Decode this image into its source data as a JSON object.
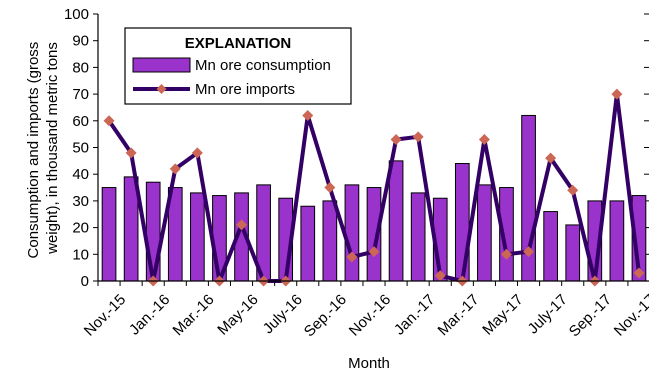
{
  "chart_data": {
    "type": "bar",
    "xlabel": "Month",
    "ylabel_lines": [
      "Consumption and imports (gross",
      "weight), in thousand metric tons"
    ],
    "ylim": [
      0,
      100
    ],
    "yticks": [
      0,
      10,
      20,
      30,
      40,
      50,
      60,
      70,
      80,
      90,
      100
    ],
    "grid": false,
    "legend": {
      "title": "EXPLANATION",
      "placement": "top-left"
    },
    "categories": [
      "Nov.-15",
      "Dec.-15",
      "Jan.-16",
      "Feb.-16",
      "Mar.-16",
      "Apr.-16",
      "May-16",
      "June-16",
      "July-16",
      "Aug.-16",
      "Sep.-16",
      "Oct.-16",
      "Nov.-16",
      "Dec.-16",
      "Jan.-17",
      "Feb.-17",
      "Mar.-17",
      "Apr.-17",
      "May-17",
      "June-17",
      "July-17",
      "Aug.-17",
      "Sep.-17",
      "Oct.-17",
      "Nov.-17"
    ],
    "tick_labels": [
      "Nov.-15",
      "Jan.-16",
      "Mar.-16",
      "May-16",
      "July-16",
      "Sep.-16",
      "Nov.-16",
      "Jan.-17",
      "Mar.-17",
      "May-17",
      "July-17",
      "Sep.-17",
      "Nov.-17"
    ],
    "series": [
      {
        "name": "Mn ore consumption",
        "type": "bar",
        "color": "#9933cc",
        "values": [
          35,
          39,
          37,
          35,
          33,
          32,
          33,
          36,
          31,
          28,
          30,
          36,
          35,
          45,
          33,
          31,
          44,
          36,
          35,
          62,
          26,
          21,
          30,
          30,
          32
        ]
      },
      {
        "name": "Mn ore imports",
        "type": "line",
        "color": "#330066",
        "marker_color": "#cc6655",
        "values": [
          60,
          48,
          0,
          42,
          48,
          0,
          21,
          0,
          0,
          62,
          35,
          9,
          11,
          53,
          54,
          2,
          0,
          53,
          10,
          11,
          46,
          34,
          0,
          70,
          3
        ]
      }
    ]
  }
}
